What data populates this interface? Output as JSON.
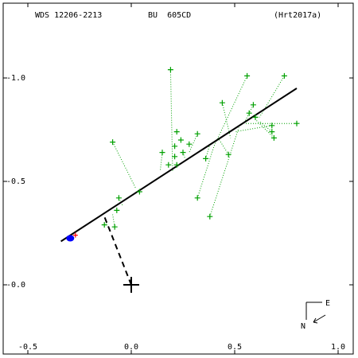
{
  "header": {
    "wds": "WDS 12206-2213",
    "disc": "BU  605CD",
    "ref": "(Hrt2017a)"
  },
  "compass": {
    "east": "E",
    "north": "N"
  },
  "colors": {
    "observation": "#00a000",
    "orbit": "#000000",
    "current_position": "#0000ff",
    "tick_mark": "#ff0000",
    "primary": "#000000"
  },
  "chart_data": {
    "type": "scatter",
    "xlim": [
      -0.5,
      1.0
    ],
    "ylim": [
      -0.25,
      1.25
    ],
    "y_axis_inverted": true,
    "x_ticks": [
      -0.5,
      0.0,
      0.5,
      1.0
    ],
    "x_tick_labels": [
      "-0.5",
      "0.0",
      "0.5",
      "1.0"
    ],
    "y_ticks": [
      0.0,
      0.5,
      1.0
    ],
    "y_tick_labels": [
      "-0.0",
      "-0.5",
      "-1.0"
    ],
    "primary_star": [
      0.0,
      0.0
    ],
    "orbit_line": [
      [
        -0.34,
        0.21
      ],
      [
        0.8,
        0.95
      ]
    ],
    "node_line": [
      [
        0.0,
        0.0
      ],
      [
        -0.13,
        0.33
      ]
    ],
    "current_position": [
      -0.295,
      0.225
    ],
    "tick_marker": [
      -0.27,
      0.24
    ],
    "observations": [
      [
        0.19,
        1.04
      ],
      [
        0.56,
        1.01
      ],
      [
        0.74,
        1.01
      ],
      [
        0.44,
        0.88
      ],
      [
        0.59,
        0.87
      ],
      [
        0.57,
        0.83
      ],
      [
        0.6,
        0.81
      ],
      [
        0.68,
        0.77
      ],
      [
        0.8,
        0.78
      ],
      [
        0.68,
        0.74
      ],
      [
        0.69,
        0.71
      ],
      [
        0.22,
        0.74
      ],
      [
        0.32,
        0.73
      ],
      [
        0.24,
        0.7
      ],
      [
        0.28,
        0.68
      ],
      [
        0.21,
        0.67
      ],
      [
        -0.09,
        0.69
      ],
      [
        0.15,
        0.64
      ],
      [
        0.25,
        0.64
      ],
      [
        0.21,
        0.62
      ],
      [
        0.47,
        0.63
      ],
      [
        0.36,
        0.61
      ],
      [
        0.18,
        0.58
      ],
      [
        0.22,
        0.58
      ],
      [
        0.04,
        0.45
      ],
      [
        -0.06,
        0.42
      ],
      [
        -0.07,
        0.36
      ],
      [
        0.32,
        0.42
      ],
      [
        0.38,
        0.33
      ],
      [
        -0.13,
        0.29
      ],
      [
        -0.08,
        0.28
      ]
    ],
    "residual_links": [
      [
        [
          0.19,
          1.04
        ],
        [
          0.2,
          0.55
        ]
      ],
      [
        [
          0.56,
          1.01
        ],
        [
          0.4,
          0.67
        ]
      ],
      [
        [
          0.74,
          1.01
        ],
        [
          0.62,
          0.81
        ]
      ],
      [
        [
          0.44,
          0.88
        ],
        [
          0.48,
          0.71
        ]
      ],
      [
        [
          0.59,
          0.87
        ],
        [
          0.55,
          0.79
        ]
      ],
      [
        [
          0.68,
          0.77
        ],
        [
          0.5,
          0.74
        ]
      ],
      [
        [
          0.8,
          0.78
        ],
        [
          0.55,
          0.78
        ]
      ],
      [
        [
          0.68,
          0.74
        ],
        [
          0.62,
          0.79
        ]
      ],
      [
        [
          0.69,
          0.71
        ],
        [
          0.6,
          0.8
        ]
      ],
      [
        [
          0.32,
          0.73
        ],
        [
          0.28,
          0.64
        ]
      ],
      [
        [
          -0.09,
          0.69
        ],
        [
          0.02,
          0.47
        ]
      ],
      [
        [
          0.47,
          0.63
        ],
        [
          0.42,
          0.71
        ]
      ],
      [
        [
          0.36,
          0.61
        ],
        [
          0.38,
          0.68
        ]
      ],
      [
        [
          0.32,
          0.42
        ],
        [
          0.4,
          0.67
        ]
      ],
      [
        [
          0.38,
          0.33
        ],
        [
          0.52,
          0.76
        ]
      ],
      [
        [
          -0.06,
          0.42
        ],
        [
          -0.04,
          0.38
        ]
      ],
      [
        [
          -0.13,
          0.29
        ],
        [
          -0.12,
          0.3
        ]
      ],
      [
        [
          -0.08,
          0.28
        ],
        [
          -0.09,
          0.34
        ]
      ],
      [
        [
          0.15,
          0.64
        ],
        [
          0.14,
          0.55
        ]
      ],
      [
        [
          0.25,
          0.64
        ],
        [
          0.26,
          0.61
        ]
      ]
    ]
  }
}
